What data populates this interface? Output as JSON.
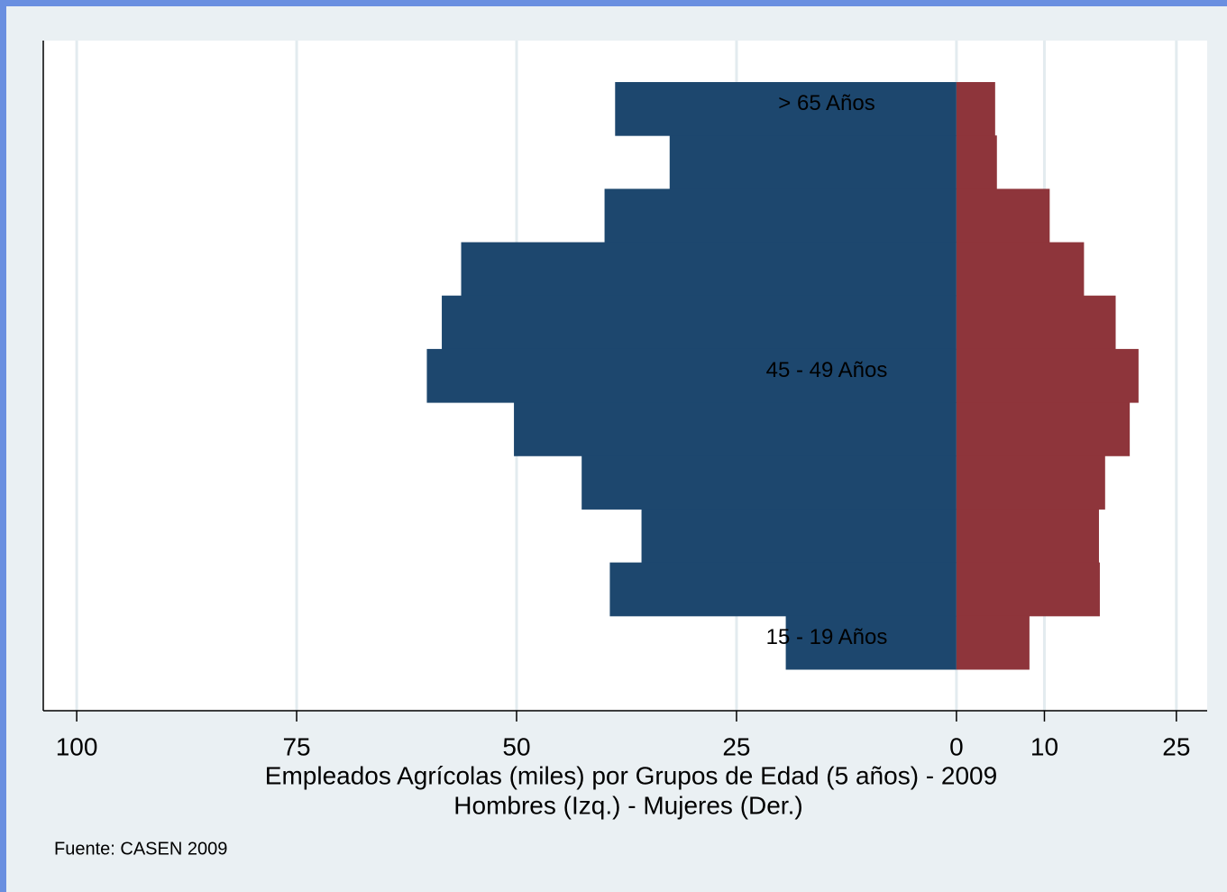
{
  "chart_data": {
    "type": "pyramid",
    "categories": [
      "> 65 Años",
      null,
      null,
      null,
      null,
      "45 - 49 Años",
      null,
      null,
      null,
      null,
      "15 - 19 Años"
    ],
    "series": [
      {
        "color": "#1d476e",
        "values": [
          -38.8,
          -32.6,
          -40.0,
          -56.3,
          -58.5,
          -60.2,
          -50.3,
          -42.6,
          -35.8,
          -39.4,
          -19.4
        ]
      },
      {
        "color": "#8e353b",
        "values": [
          4.4,
          4.6,
          10.6,
          14.5,
          18.1,
          20.7,
          19.7,
          16.9,
          16.2,
          16.3,
          8.3
        ]
      }
    ],
    "xlim": [
      -103.8,
      28.5
    ],
    "xticks": [
      {
        "value": -100,
        "label": "100"
      },
      {
        "value": -75,
        "label": "75"
      },
      {
        "value": -50,
        "label": "50"
      },
      {
        "value": -25,
        "label": "25"
      },
      0,
      10,
      25
    ],
    "grid": true,
    "xlabel": [
      "Empleados Agrícolas (miles) por Grupos de Edad (5 años) - 2009",
      "Hombres (Izq.) - Mujeres (Der.)"
    ],
    "note": "Fuente: CASEN 2009"
  }
}
